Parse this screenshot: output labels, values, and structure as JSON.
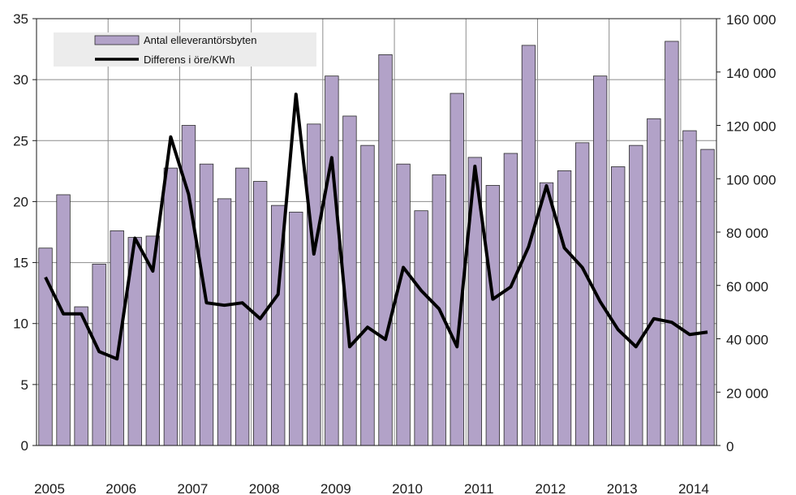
{
  "chart_data": {
    "type": "bar",
    "left_axis": {
      "ylim": [
        0,
        35
      ],
      "ticks": [
        "0",
        "5",
        "10",
        "15",
        "20",
        "25",
        "30",
        "35"
      ]
    },
    "right_axis": {
      "ylim": [
        0,
        160000
      ],
      "ticks": [
        "0",
        "20 000",
        "40 000",
        "60 000",
        "80 000",
        "100 000",
        "120 000",
        "140 000",
        "160 000"
      ]
    },
    "x_tick_labels": [
      "2005",
      "2006",
      "2007",
      "2008",
      "2009",
      "2010",
      "2011",
      "2012",
      "2013",
      "2014"
    ],
    "grid": true,
    "legend_position": "top-left",
    "colors": {
      "bar_fill": "#b2a2c8",
      "bar_stroke": "#2b2b2b",
      "line": "#000000",
      "legend_bg": "#ececec"
    },
    "series": [
      {
        "name": "Antal elleverantörsbyten",
        "type": "bar",
        "axis": "right",
        "values": [
          74000,
          94000,
          52000,
          68000,
          80500,
          78000,
          78500,
          104000,
          120000,
          105500,
          92500,
          104000,
          99000,
          90000,
          87500,
          120500,
          138500,
          123500,
          112500,
          146500,
          105500,
          88000,
          101500,
          132000,
          108000,
          97500,
          109500,
          150000,
          98500,
          103000,
          113500,
          138500,
          104500,
          112500,
          122500,
          151500,
          118000,
          111000
        ]
      },
      {
        "name": "Differens i öre/KWh",
        "type": "line",
        "axis": "left",
        "values": [
          13.8,
          10.8,
          10.8,
          7.7,
          7.1,
          17.0,
          14.3,
          25.3,
          20.6,
          11.7,
          11.5,
          11.7,
          10.4,
          12.4,
          28.8,
          15.7,
          23.6,
          8.1,
          9.7,
          8.7,
          14.6,
          12.7,
          11.2,
          8.1,
          22.9,
          12.0,
          13.0,
          16.3,
          21.3,
          16.2,
          14.6,
          11.8,
          9.5,
          8.1,
          10.4,
          10.1,
          9.1,
          9.3
        ]
      }
    ]
  }
}
